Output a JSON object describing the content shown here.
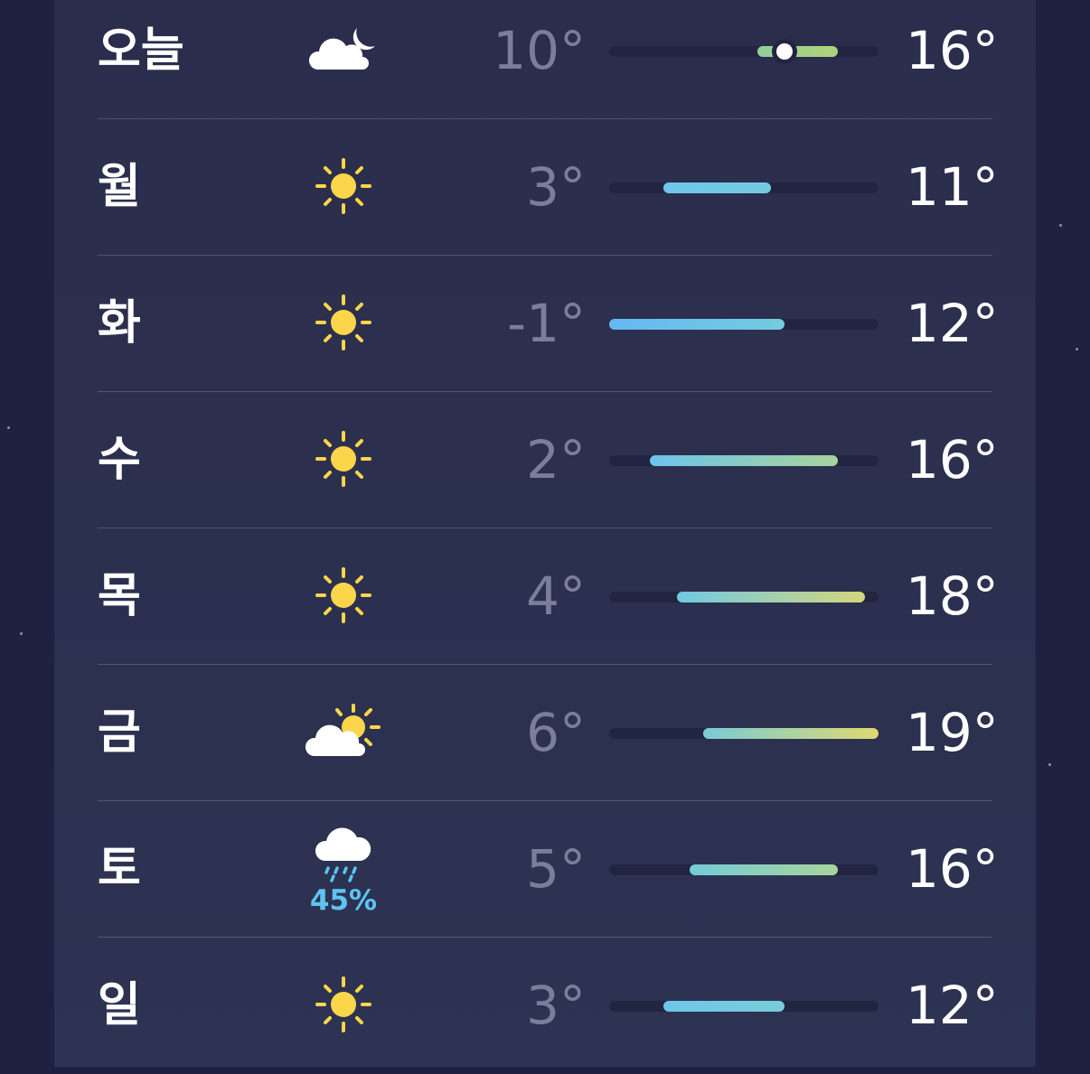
{
  "scale": {
    "min": -1,
    "max": 19
  },
  "current_temp": 12,
  "days": [
    {
      "day": "오늘",
      "icon": "cloud-moon-icon",
      "low": "10°",
      "high": "16°",
      "low_v": 10,
      "high_v": 16,
      "colors": [
        "#93cf9a",
        "#b0d27a"
      ]
    },
    {
      "day": "월",
      "icon": "sun-icon",
      "low": "3°",
      "high": "11°",
      "low_v": 3,
      "high_v": 11,
      "colors": [
        "#6fc6ea",
        "#74cbe0"
      ]
    },
    {
      "day": "화",
      "icon": "sun-icon",
      "low": "-1°",
      "high": "12°",
      "low_v": -1,
      "high_v": 12,
      "colors": [
        "#66b8f2",
        "#74cbe0"
      ]
    },
    {
      "day": "수",
      "icon": "sun-icon",
      "low": "2°",
      "high": "16°",
      "low_v": 2,
      "high_v": 16,
      "colors": [
        "#6cc3ec",
        "#a8d49a"
      ]
    },
    {
      "day": "목",
      "icon": "sun-icon",
      "low": "4°",
      "high": "18°",
      "low_v": 4,
      "high_v": 18,
      "colors": [
        "#70c9e4",
        "#d4d67c"
      ]
    },
    {
      "day": "금",
      "icon": "sun-cloud-icon",
      "low": "6°",
      "high": "19°",
      "low_v": 6,
      "high_v": 19,
      "colors": [
        "#78ccd4",
        "#e0d870"
      ]
    },
    {
      "day": "토",
      "icon": "rain-cloud-icon",
      "precip": "45%",
      "low": "5°",
      "high": "16°",
      "low_v": 5,
      "high_v": 16,
      "colors": [
        "#74cbd8",
        "#a8d49a"
      ]
    },
    {
      "day": "일",
      "icon": "sun-icon",
      "low": "3°",
      "high": "12°",
      "low_v": 3,
      "high_v": 12,
      "colors": [
        "#6fc6ea",
        "#78ccd8"
      ]
    }
  ]
}
